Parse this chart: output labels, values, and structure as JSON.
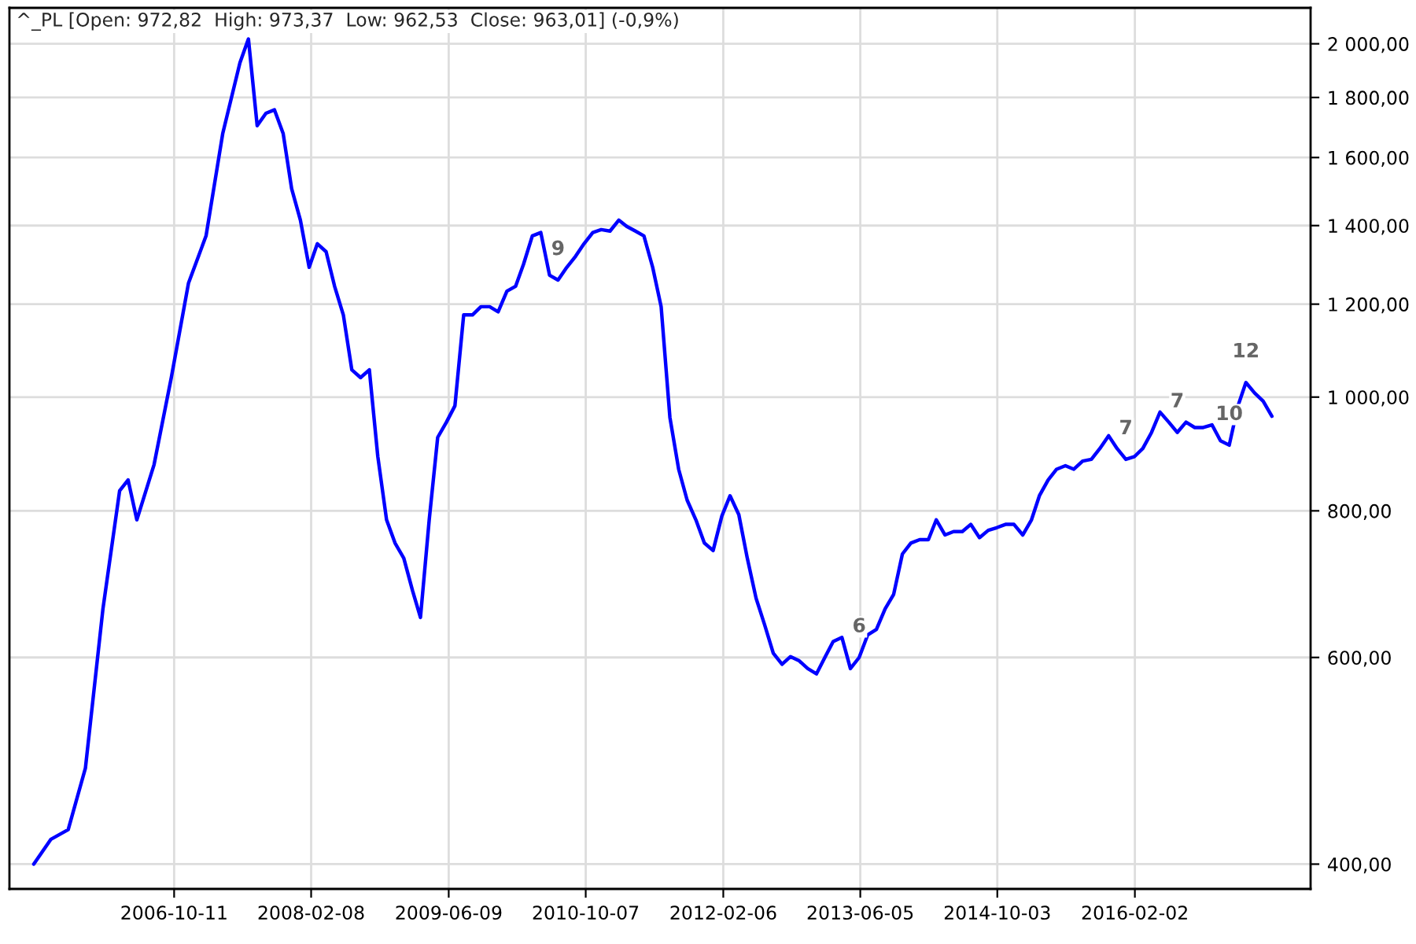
{
  "chart_data": {
    "type": "line",
    "title": "^_PL [Open: 972,82  High: 973,37  Low: 962,53  Close: 963,01] (-0,9%)",
    "series": [
      {
        "color": "#0000ff",
        "x": [
          "2005-06",
          "2005-08",
          "2005-10",
          "2005-12",
          "2006-02",
          "2006-04",
          "2006-05",
          "2006-06",
          "2006-08",
          "2006-10",
          "2006-12",
          "2007-02",
          "2007-04",
          "2007-06",
          "2007-07",
          "2007-08",
          "2007-09",
          "2007-10",
          "2007-11",
          "2007-12",
          "2008-01",
          "2008-02",
          "2008-03",
          "2008-04",
          "2008-05",
          "2008-06",
          "2008-07",
          "2008-08",
          "2008-09",
          "2008-10",
          "2008-11",
          "2008-12",
          "2009-01",
          "2009-02",
          "2009-03",
          "2009-04",
          "2009-05",
          "2009-06",
          "2009-07",
          "2009-08",
          "2009-09",
          "2009-10",
          "2009-11",
          "2009-12",
          "2010-01",
          "2010-02",
          "2010-03",
          "2010-04",
          "2010-05",
          "2010-06",
          "2010-07",
          "2010-08",
          "2010-09",
          "2010-10",
          "2010-11",
          "2010-12",
          "2011-01",
          "2011-02",
          "2011-03",
          "2011-04",
          "2011-05",
          "2011-06",
          "2011-07",
          "2011-08",
          "2011-09",
          "2011-10",
          "2011-11",
          "2011-12",
          "2012-01",
          "2012-02",
          "2012-03",
          "2012-04",
          "2012-05",
          "2012-06",
          "2012-07",
          "2012-08",
          "2012-09",
          "2012-10",
          "2012-11",
          "2012-12",
          "2013-01",
          "2013-02",
          "2013-03",
          "2013-04",
          "2013-05",
          "2013-06",
          "2013-07",
          "2013-08",
          "2013-09",
          "2013-10",
          "2013-11",
          "2013-12",
          "2014-01",
          "2014-02",
          "2014-03",
          "2014-04",
          "2014-05",
          "2014-06",
          "2014-07",
          "2014-08",
          "2014-09",
          "2014-10",
          "2014-11",
          "2014-12",
          "2015-01",
          "2015-02",
          "2015-03",
          "2015-04",
          "2015-05",
          "2015-06",
          "2015-07",
          "2015-08",
          "2015-09",
          "2015-10",
          "2015-11",
          "2015-12",
          "2016-01",
          "2016-02",
          "2016-03",
          "2016-04",
          "2016-05",
          "2016-06",
          "2016-07",
          "2016-08",
          "2016-09",
          "2016-10",
          "2016-11",
          "2016-12",
          "2017-01",
          "2017-02",
          "2017-03",
          "2017-04",
          "2017-05",
          "2017-06"
        ],
        "values": [
          400,
          420,
          428,
          483,
          660,
          832,
          850,
          786,
          876,
          1039,
          1251,
          1372,
          1677,
          1927,
          2019,
          1703,
          1745,
          1757,
          1677,
          1505,
          1415,
          1290,
          1351,
          1330,
          1243,
          1175,
          1055,
          1039,
          1055,
          890,
          786,
          751,
          729,
          684,
          649,
          786,
          924,
          952,
          983,
          1175,
          1175,
          1194,
          1194,
          1182,
          1231,
          1243,
          1298,
          1372,
          1381,
          1270,
          1258,
          1290,
          1318,
          1351,
          1381,
          1389,
          1385,
          1415,
          1398,
          1385,
          1372,
          1290,
          1194,
          961,
          868,
          817,
          786,
          751,
          740,
          792,
          824,
          794,
          729,
          674,
          640,
          605,
          592,
          601,
          596,
          587,
          581,
          601,
          619,
          624,
          587,
          600,
          627,
          634,
          660,
          679,
          735,
          751,
          756,
          756,
          786,
          763,
          768,
          768,
          779,
          759,
          770,
          774,
          779,
          779,
          763,
          786,
          824,
          850,
          868,
          874,
          868,
          882,
          885,
          904,
          927,
          904,
          885,
          890,
          904,
          933,
          971,
          952,
          933,
          952,
          942,
          942,
          947,
          918,
          910,
          983,
          1029,
          1008,
          992,
          963
        ]
      }
    ],
    "annotations": [
      {
        "text": "9",
        "x": "2010-07",
        "y": 1258
      },
      {
        "text": "6",
        "x": "2013-06",
        "y": 600
      },
      {
        "text": "7",
        "x": "2016-01",
        "y": 885
      },
      {
        "text": "7",
        "x": "2016-07",
        "y": 933
      },
      {
        "text": "10",
        "x": "2017-01",
        "y": 910
      },
      {
        "text": "12",
        "x": "2017-03",
        "y": 1029
      }
    ],
    "log": true,
    "xlim": [
      "2005-03-07",
      "2017-10-16"
    ],
    "xticks": [
      "2006-10-11",
      "2008-02-08",
      "2009-06-09",
      "2010-10-07",
      "2012-02-06",
      "2013-06-05",
      "2014-10-03",
      "2016-02-02"
    ],
    "ylim": [
      381,
      2146
    ],
    "yticks": [
      {
        "value": 400,
        "label": "400,00"
      },
      {
        "value": 600,
        "label": "600,00"
      },
      {
        "value": 800,
        "label": "800,00"
      },
      {
        "value": 1000,
        "label": "1 000,00"
      },
      {
        "value": 1200,
        "label": "1 200,00"
      },
      {
        "value": 1400,
        "label": "1 400,00"
      },
      {
        "value": 1600,
        "label": "1 600,00"
      },
      {
        "value": 1800,
        "label": "1 800,00"
      },
      {
        "value": 2000,
        "label": "2 000,00"
      }
    ],
    "grid": true,
    "marker": "none",
    "line_style": "solid"
  }
}
